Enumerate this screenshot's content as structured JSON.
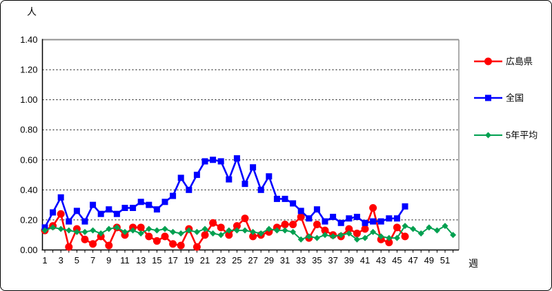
{
  "chart_data": {
    "type": "line",
    "title": "",
    "ylabel": "人",
    "xlabel": "週",
    "ylim": [
      0.0,
      1.4
    ],
    "ytick_step": 0.2,
    "y_tick_labels": [
      "0.00",
      "0.20",
      "0.40",
      "0.60",
      "0.80",
      "1.00",
      "1.20",
      "1.40"
    ],
    "x_tick_labels": [
      "1",
      "3",
      "5",
      "7",
      "9",
      "11",
      "13",
      "15",
      "17",
      "19",
      "21",
      "23",
      "25",
      "27",
      "29",
      "31",
      "33",
      "35",
      "37",
      "39",
      "41",
      "43",
      "45",
      "47",
      "49",
      "51"
    ],
    "weeks_total": 52,
    "grid": "horizontal-dashed",
    "legend_position": "right-outside",
    "series": [
      {
        "name": "広島県",
        "color": "#FF0000",
        "marker": "circle",
        "start_week": 1,
        "values": [
          0.13,
          0.16,
          0.24,
          0.02,
          0.14,
          0.07,
          0.04,
          0.09,
          0.03,
          0.15,
          0.1,
          0.15,
          0.15,
          0.09,
          0.06,
          0.09,
          0.04,
          0.03,
          0.14,
          0.02,
          0.1,
          0.18,
          0.15,
          0.1,
          0.16,
          0.21,
          0.09,
          0.1,
          0.12,
          0.15,
          0.17,
          0.17,
          0.22,
          0.08,
          0.17,
          0.13,
          0.1,
          0.09,
          0.14,
          0.11,
          0.14,
          0.28,
          0.07,
          0.05,
          0.15,
          0.09
        ]
      },
      {
        "name": "全国",
        "color": "#0000FF",
        "marker": "square",
        "start_week": 1,
        "values": [
          0.15,
          0.25,
          0.35,
          0.19,
          0.26,
          0.19,
          0.3,
          0.24,
          0.27,
          0.24,
          0.28,
          0.28,
          0.32,
          0.3,
          0.27,
          0.32,
          0.36,
          0.48,
          0.4,
          0.5,
          0.59,
          0.6,
          0.59,
          0.47,
          0.61,
          0.44,
          0.55,
          0.4,
          0.49,
          0.34,
          0.34,
          0.31,
          0.26,
          0.21,
          0.27,
          0.19,
          0.22,
          0.18,
          0.21,
          0.22,
          0.18,
          0.19,
          0.19,
          0.21,
          0.21,
          0.29
        ]
      },
      {
        "name": "5年平均",
        "color": "#00A050",
        "marker": "diamond",
        "start_week": 1,
        "values": [
          0.13,
          0.15,
          0.14,
          0.13,
          0.12,
          0.12,
          0.13,
          0.11,
          0.14,
          0.15,
          0.12,
          0.13,
          0.11,
          0.14,
          0.13,
          0.14,
          0.12,
          0.11,
          0.13,
          0.12,
          0.14,
          0.11,
          0.1,
          0.13,
          0.13,
          0.13,
          0.12,
          0.11,
          0.14,
          0.13,
          0.13,
          0.12,
          0.07,
          0.09,
          0.08,
          0.1,
          0.09,
          0.1,
          0.11,
          0.07,
          0.08,
          0.12,
          0.09,
          0.08,
          0.08,
          0.16,
          0.14,
          0.11,
          0.15,
          0.13,
          0.16,
          0.1
        ]
      }
    ]
  }
}
